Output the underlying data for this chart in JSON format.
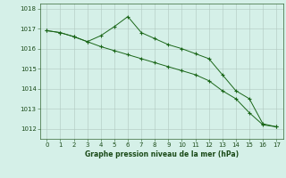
{
  "line1_x": [
    0,
    1,
    2,
    3,
    4,
    5,
    6,
    7,
    8,
    9,
    10,
    11,
    12,
    13,
    14,
    15,
    16,
    17
  ],
  "line1_y": [
    1016.9,
    1016.8,
    1016.6,
    1016.35,
    1016.65,
    1017.1,
    1017.6,
    1016.8,
    1016.5,
    1016.2,
    1016.0,
    1015.75,
    1015.5,
    1014.7,
    1013.9,
    1013.5,
    1012.25,
    1012.1
  ],
  "line2_x": [
    0,
    1,
    2,
    3,
    4,
    5,
    6,
    7,
    8,
    9,
    10,
    11,
    12,
    13,
    14,
    15,
    16,
    17
  ],
  "line2_y": [
    1016.9,
    1016.8,
    1016.6,
    1016.35,
    1016.1,
    1015.9,
    1015.7,
    1015.5,
    1015.3,
    1015.1,
    1014.9,
    1014.7,
    1014.4,
    1013.9,
    1013.5,
    1012.8,
    1012.2,
    1012.1
  ],
  "line_color": "#1a6618",
  "background_color": "#d5f0e8",
  "grid_color": "#b0c8c0",
  "xlabel": "Graphe pression niveau de la mer (hPa)",
  "ylim": [
    1011.5,
    1018.25
  ],
  "xlim": [
    -0.5,
    17.5
  ],
  "yticks": [
    1012,
    1013,
    1014,
    1015,
    1016,
    1017,
    1018
  ],
  "xticks": [
    0,
    1,
    2,
    3,
    4,
    5,
    6,
    7,
    8,
    9,
    10,
    11,
    12,
    13,
    14,
    15,
    16,
    17
  ],
  "tick_fontsize": 5.0,
  "xlabel_fontsize": 5.5,
  "linewidth": 0.7,
  "markersize": 3.0,
  "markeredgewidth": 0.8
}
